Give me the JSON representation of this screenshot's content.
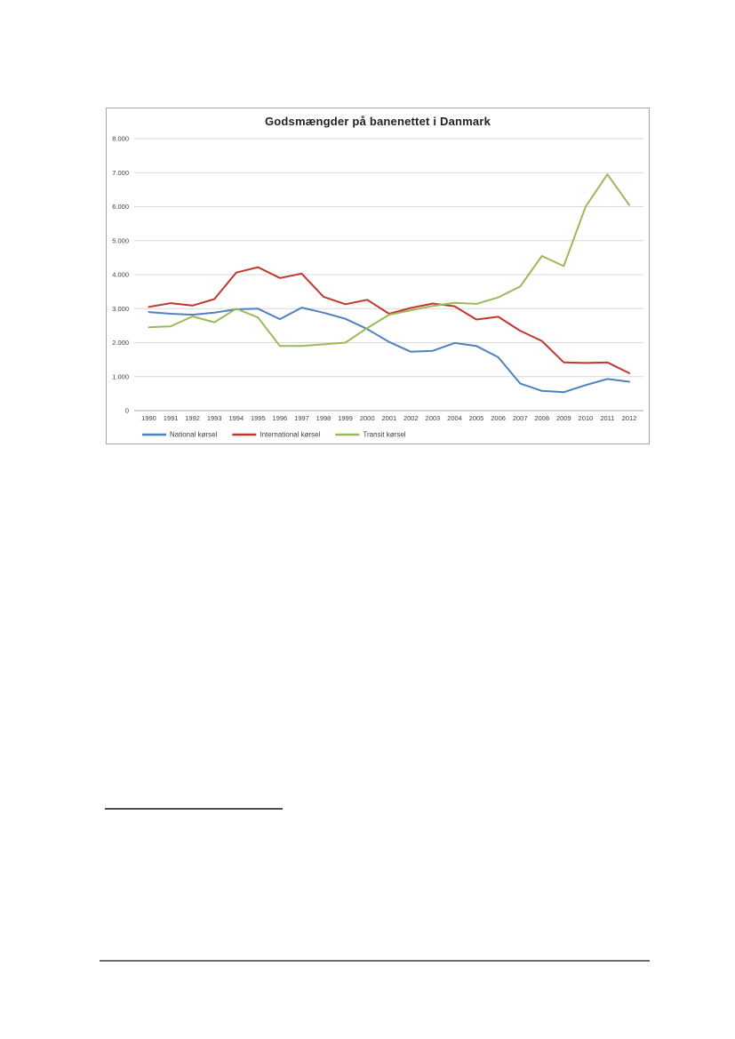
{
  "page": {
    "background": "#ffffff"
  },
  "chart_data": {
    "type": "line",
    "title": "Godsmængder på banenettet i Danmark",
    "x": [
      "1990",
      "1991",
      "1992",
      "1993",
      "1994",
      "1995",
      "1996",
      "1997",
      "1998",
      "1999",
      "2000",
      "2001",
      "2002",
      "2003",
      "2004",
      "2005",
      "2006",
      "2007",
      "2008",
      "2009",
      "2010",
      "2011",
      "2012"
    ],
    "series": [
      {
        "name": "National kørsel",
        "color": "#4F81BD",
        "values": [
          2900,
          2850,
          2820,
          2880,
          2980,
          3000,
          2690,
          3030,
          2880,
          2700,
          2400,
          2020,
          1730,
          1760,
          1990,
          1900,
          1570,
          800,
          580,
          540,
          750,
          930,
          850
        ]
      },
      {
        "name": "International kørsel",
        "color": "#C0382C",
        "values": [
          3050,
          3160,
          3090,
          3280,
          4060,
          4220,
          3900,
          4030,
          3350,
          3130,
          3260,
          2850,
          3020,
          3150,
          3070,
          2680,
          2760,
          2350,
          2050,
          1420,
          1400,
          1420,
          1100
        ]
      },
      {
        "name": "Transit kørsel",
        "color": "#9ABA58",
        "values": [
          2450,
          2480,
          2770,
          2600,
          3000,
          2740,
          1900,
          1900,
          1950,
          2000,
          2430,
          2820,
          2950,
          3080,
          3170,
          3140,
          3330,
          3650,
          4550,
          4250,
          6000,
          6950,
          6050
        ]
      }
    ],
    "ylim": [
      0,
      8000
    ],
    "y_ticks": [
      {
        "value": 0,
        "label": "0"
      },
      {
        "value": 1000,
        "label": "1.000"
      },
      {
        "value": 2000,
        "label": "2.000"
      },
      {
        "value": 3000,
        "label": "3.000"
      },
      {
        "value": 4000,
        "label": "4.000"
      },
      {
        "value": 5000,
        "label": "5.000"
      },
      {
        "value": 6000,
        "label": "6.000"
      },
      {
        "value": 7000,
        "label": "7.000"
      },
      {
        "value": 8000,
        "label": "8.000"
      }
    ],
    "grid": true,
    "legend_position": "bottom-left",
    "colors": {
      "gridline": "#D9D9D9",
      "axis": "#A6A6A6",
      "tick_text": "#404040",
      "border": "#A6A6A6"
    }
  }
}
